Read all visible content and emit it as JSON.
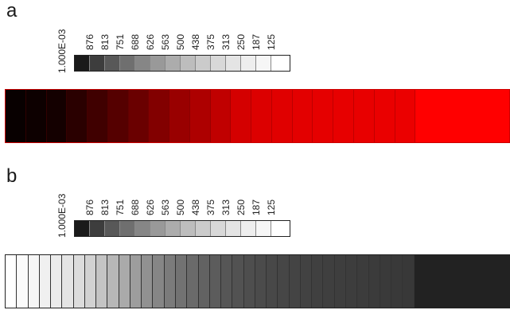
{
  "panels": [
    {
      "label": "a",
      "scale_title": "1.000E-03",
      "ticks": [
        "876",
        "813",
        "751",
        "688",
        "626",
        "563",
        "500",
        "438",
        "375",
        "313",
        "250",
        "187",
        "125"
      ],
      "legend_colors": [
        "#1a1a1a",
        "#3d3d3d",
        "#585858",
        "#6f6f6f",
        "#868686",
        "#999999",
        "#acacac",
        "#bdbdbd",
        "#cbcbcb",
        "#d8d8d8",
        "#e4e4e4",
        "#eeeeee",
        "#f6f6f6",
        "#ffffff"
      ],
      "strip_colors": [
        "#080000",
        "#0d0000",
        "#140000",
        "#2a0000",
        "#400000",
        "#550000",
        "#6a0000",
        "#820000",
        "#990000",
        "#ad0000",
        "#c00000",
        "#d40000",
        "#dc0000",
        "#e00000",
        "#e30000",
        "#e50000",
        "#e70000",
        "#e80000",
        "#ea0000",
        "#eb0000",
        "#ff0000"
      ],
      "strip_border": "#cc0000"
    },
    {
      "label": "b",
      "scale_title": "1.000E-03",
      "ticks": [
        "876",
        "813",
        "751",
        "688",
        "626",
        "563",
        "500",
        "438",
        "375",
        "313",
        "250",
        "187",
        "125"
      ],
      "legend_colors": [
        "#1a1a1a",
        "#3d3d3d",
        "#585858",
        "#6f6f6f",
        "#868686",
        "#999999",
        "#acacac",
        "#bdbdbd",
        "#cbcbcb",
        "#d8d8d8",
        "#e4e4e4",
        "#eeeeee",
        "#f6f6f6",
        "#ffffff"
      ],
      "strip_colors": [
        "#ffffff",
        "#fbfbfb",
        "#f6f6f6",
        "#f0f0f0",
        "#ebebeb",
        "#e4e4e4",
        "#dcdcdc",
        "#d2d2d2",
        "#c4c4c4",
        "#b7b7b7",
        "#aaaaaa",
        "#9d9d9d",
        "#919191",
        "#868686",
        "#7b7b7b",
        "#727272",
        "#6a6a6a",
        "#626262",
        "#5c5c5c",
        "#565656",
        "#525252",
        "#4e4e4e",
        "#4b4b4b",
        "#484848",
        "#464646",
        "#444444",
        "#424242",
        "#404040",
        "#3f3f3f",
        "#3e3e3e",
        "#3d3d3d",
        "#3c3c3c",
        "#3b3b3b",
        "#3a3a3a",
        "#393939",
        "#383838",
        "#222222"
      ],
      "strip_border": "#222222"
    }
  ]
}
